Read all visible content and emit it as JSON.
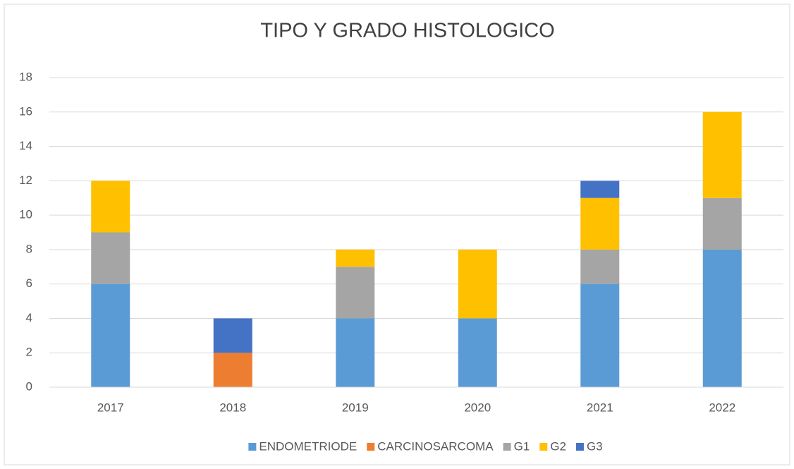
{
  "chart_data": {
    "type": "stacked_bar",
    "title": "TIPO Y GRADO HISTOLOGICO",
    "categories": [
      "2017",
      "2018",
      "2019",
      "2020",
      "2021",
      "2022"
    ],
    "series": [
      {
        "name": "ENDOMETRIODE",
        "color": "#5b9bd5",
        "values": [
          6,
          0,
          4,
          4,
          6,
          8
        ]
      },
      {
        "name": "CARCINOSARCOMA",
        "color": "#ed7d31",
        "values": [
          0,
          2,
          0,
          0,
          0,
          0
        ]
      },
      {
        "name": "G1",
        "color": "#a5a5a5",
        "values": [
          3,
          0,
          3,
          0,
          2,
          3
        ]
      },
      {
        "name": "G2",
        "color": "#ffc000",
        "values": [
          3,
          0,
          1,
          4,
          3,
          5
        ]
      },
      {
        "name": "G3",
        "color": "#4472c4",
        "values": [
          0,
          2,
          0,
          0,
          1,
          0
        ]
      }
    ],
    "ylim": [
      0,
      18
    ],
    "yticks": [
      0,
      2,
      4,
      6,
      8,
      10,
      12,
      14,
      16,
      18
    ],
    "grid": true,
    "legend": "bottom"
  }
}
